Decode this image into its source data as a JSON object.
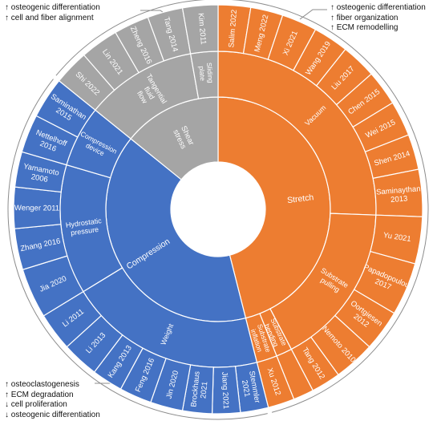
{
  "notes": {
    "top_left": [
      "↑ osteogenic differentiation",
      "↑ cell and fiber alignment"
    ],
    "top_right": [
      "↑ osteogenic differentiation",
      "↑ fiber organization",
      "↑ ECM remodelling"
    ],
    "bottom_left": [
      "↑ osteoclastogenesis",
      "↑ ECM degradation",
      "↓ cell proliferation",
      "↓ osteogenic differentiation"
    ]
  },
  "colors": {
    "stretch": "#ED7D31",
    "compression": "#4472C4",
    "shear": "#A5A5A5",
    "border": "#ffffff",
    "bracket": "#8c8c8c"
  },
  "chart_data": {
    "type": "sunburst",
    "rings": [
      "load type",
      "loading method",
      "study"
    ],
    "categories": [
      {
        "name": "Stretch",
        "color_key": "stretch",
        "methods": [
          {
            "name": "Vacuum",
            "studies": [
              "Salim 2022",
              "Meng 2022",
              "Xi 2021",
              "Wang 2019",
              "Liu 2017",
              "Chen 2015",
              "Wei 2015",
              "Shen 2014",
              "Saminaythan 2013"
            ]
          },
          {
            "name": "Substrate pulling",
            "studies": [
              "Yu 2021",
              "Papadopoulou 2017",
              "Oortgiesen 2012",
              "Nemoto 2010",
              "Tang 2012"
            ]
          },
          {
            "name": "Substrate bending",
            "studies": []
          },
          {
            "name": "Substrate inflation",
            "studies": [
              "Xu 2012"
            ]
          }
        ]
      },
      {
        "name": "Compression",
        "color_key": "compression",
        "methods": [
          {
            "name": "Weight",
            "studies": [
              "Stemmler 2021",
              "Jiang 2021",
              "Brockhaus 2021",
              "Jin 2020",
              "Feng 2016",
              "Kang 2013",
              "Li 2013",
              "Li 2011"
            ]
          },
          {
            "name": "Hydrostatic pressure",
            "studies": [
              "Jia 2020",
              "Zhang 2016",
              "Wenger 2011",
              "Yamamoto 2006"
            ]
          },
          {
            "name": "Compression device",
            "studies": [
              "Nettelhoff 2016",
              "Saminathan 2015"
            ]
          }
        ]
      },
      {
        "name": "Shear stress",
        "color_key": "shear",
        "methods": [
          {
            "name": "Tangential fluid flow",
            "studies": [
              "Shi 2022",
              "Lin 2021",
              "Zheng 2016",
              "Tang 2014"
            ]
          },
          {
            "name": "Sliding plate",
            "studies": [
              "Kim 2011"
            ]
          }
        ]
      }
    ]
  }
}
